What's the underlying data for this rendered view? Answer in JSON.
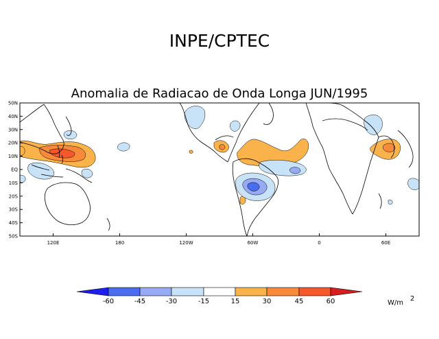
{
  "header": {
    "org": "INPE/CPTEC"
  },
  "map": {
    "title": "Anomalia de Radiacao de Onda Longa JUN/1995",
    "lat_labels": [
      "50N",
      "40N",
      "30N",
      "20N",
      "10N",
      "EQ",
      "10S",
      "20S",
      "30S",
      "40S",
      "50S"
    ],
    "lon_labels": [
      "120E",
      "180",
      "120W",
      "60W",
      "0",
      "60E"
    ]
  },
  "colorbar": {
    "tick_labels": [
      "-60",
      "-45",
      "-30",
      "-15",
      "15",
      "30",
      "45",
      "60"
    ],
    "units_base": "W/m",
    "units_exp": "2",
    "colors": {
      "lt_neg60": "#1e1ef0",
      "neg60_neg45": "#4a6cf0",
      "neg45_neg30": "#96aaf5",
      "neg30_neg15": "#c8e2f7",
      "neg15_15": "#ffffff",
      "15_30": "#fab24a",
      "30_45": "#f98a3a",
      "45_60": "#f6572b",
      "gt_60": "#d81d1d"
    }
  }
}
